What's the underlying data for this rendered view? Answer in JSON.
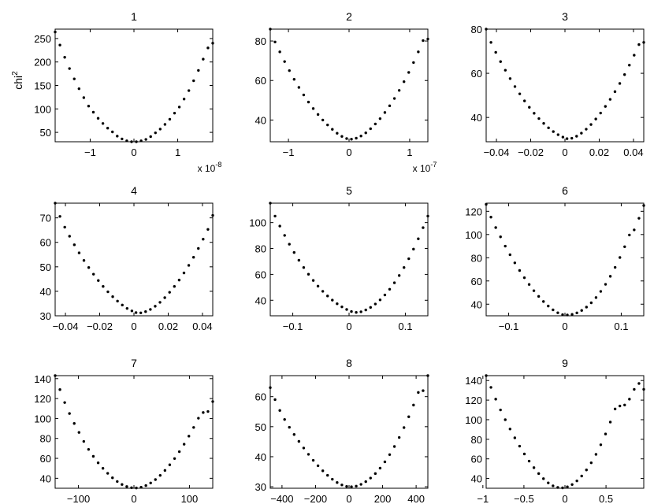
{
  "figure": {
    "ylabel": "chi",
    "ylabel_sup": "2"
  },
  "chart_data": [
    {
      "type": "scatter",
      "title": "1",
      "xlim": [
        -1.8,
        1.8
      ],
      "ylim": [
        30,
        270
      ],
      "xticks": [
        -1,
        0,
        1
      ],
      "xtick_labels": [
        "−1",
        "0",
        "1"
      ],
      "yticks": [
        50,
        100,
        150,
        200,
        250
      ],
      "ytick_labels": [
        "50",
        "100",
        "150",
        "200",
        "250"
      ],
      "x_multiplier": "x 10",
      "x_multiplier_exp": "-8",
      "x": [
        -1.8,
        -1.6909,
        -1.5818,
        -1.4727,
        -1.3636,
        -1.2545,
        -1.1455,
        -1.0364,
        -0.9273,
        -0.8182,
        -0.7091,
        -0.6,
        -0.4909,
        -0.3818,
        -0.2727,
        -0.1636,
        -0.0545,
        0.0545,
        0.1636,
        0.2727,
        0.3818,
        0.4909,
        0.6,
        0.7091,
        0.8182,
        0.9273,
        1.0364,
        1.1455,
        1.2545,
        1.3636,
        1.4727,
        1.5818,
        1.6909,
        1.8
      ],
      "y": [
        264,
        236,
        210,
        186,
        164,
        143,
        124,
        106,
        93,
        80,
        69,
        59,
        51,
        42,
        36,
        32,
        30,
        30,
        32,
        35,
        41,
        49,
        57,
        67,
        78,
        91,
        104,
        121,
        139,
        160,
        182,
        206,
        230,
        240
      ]
    },
    {
      "type": "scatter",
      "title": "2",
      "xlim": [
        -1.3,
        1.3
      ],
      "ylim": [
        29,
        86
      ],
      "xticks": [
        -1,
        0,
        1
      ],
      "xtick_labels": [
        "−1",
        "0",
        "1"
      ],
      "yticks": [
        40,
        60,
        80
      ],
      "ytick_labels": [
        "40",
        "60",
        "80"
      ],
      "x_multiplier": "x 10",
      "x_multiplier_exp": "-7",
      "x": [
        -1.3,
        -1.2212,
        -1.1424,
        -1.0636,
        -0.9848,
        -0.9061,
        -0.8273,
        -0.7485,
        -0.6697,
        -0.5909,
        -0.5121,
        -0.4333,
        -0.3545,
        -0.2758,
        -0.197,
        -0.1182,
        -0.0394,
        0.0394,
        0.1182,
        0.197,
        0.2758,
        0.3545,
        0.4333,
        0.5121,
        0.5909,
        0.6697,
        0.7485,
        0.8273,
        0.9061,
        0.9848,
        1.0636,
        1.1424,
        1.2212,
        1.3
      ],
      "y": [
        86,
        79.5,
        74.5,
        69.6,
        65,
        60.6,
        56.5,
        52.7,
        49.1,
        45.8,
        42.8,
        40,
        37.5,
        35.3,
        33.3,
        31.7,
        30.6,
        30.3,
        30.8,
        31.9,
        33.5,
        35.6,
        38,
        40.7,
        43.8,
        47.2,
        50.9,
        55,
        59.4,
        64.1,
        69.1,
        74.5,
        80.2,
        81
      ]
    },
    {
      "type": "scatter",
      "title": "3",
      "xlim": [
        -0.046,
        0.046
      ],
      "ylim": [
        29,
        80
      ],
      "xticks": [
        -0.04,
        -0.02,
        0,
        0.02,
        0.04
      ],
      "xtick_labels": [
        "−0.04",
        "−0.02",
        "0",
        "0.02",
        "0.04"
      ],
      "yticks": [
        40,
        60,
        80
      ],
      "ytick_labels": [
        "40",
        "60",
        "80"
      ],
      "x": [
        -0.046,
        -0.0432,
        -0.0404,
        -0.0376,
        -0.0348,
        -0.032,
        -0.0292,
        -0.0264,
        -0.0236,
        -0.0208,
        -0.018,
        -0.0152,
        -0.0124,
        -0.0096,
        -0.0068,
        -0.004,
        -0.0012,
        0.0012,
        0.004,
        0.0068,
        0.0096,
        0.0124,
        0.0152,
        0.018,
        0.0208,
        0.0236,
        0.0264,
        0.0292,
        0.032,
        0.0348,
        0.0376,
        0.0404,
        0.0432,
        0.046
      ],
      "y": [
        80,
        74,
        69.5,
        65.3,
        61.4,
        57.6,
        54,
        50.7,
        47.5,
        44.6,
        41.9,
        39.5,
        37.3,
        35.3,
        33.6,
        32.2,
        31.1,
        30.4,
        30.6,
        31.5,
        32.9,
        34.7,
        36.8,
        39.3,
        42,
        45,
        48.2,
        51.7,
        55.4,
        59.4,
        63.7,
        68.2,
        73,
        74
      ]
    },
    {
      "type": "scatter",
      "title": "4",
      "xlim": [
        -0.046,
        0.046
      ],
      "ylim": [
        30,
        76
      ],
      "xticks": [
        -0.04,
        -0.02,
        0,
        0.02,
        0.04
      ],
      "xtick_labels": [
        "−0.04",
        "−0.02",
        "0",
        "0.02",
        "0.04"
      ],
      "yticks": [
        30,
        40,
        50,
        60,
        70
      ],
      "ytick_labels": [
        "30",
        "40",
        "50",
        "60",
        "70"
      ],
      "x": [
        -0.046,
        -0.0432,
        -0.0404,
        -0.0376,
        -0.0348,
        -0.032,
        -0.0292,
        -0.0264,
        -0.0236,
        -0.0208,
        -0.018,
        -0.0152,
        -0.0124,
        -0.0096,
        -0.0068,
        -0.004,
        -0.0012,
        0.0012,
        0.004,
        0.0068,
        0.0096,
        0.0124,
        0.0152,
        0.018,
        0.0208,
        0.0236,
        0.0264,
        0.0292,
        0.032,
        0.0348,
        0.0376,
        0.0404,
        0.0432,
        0.046
      ],
      "y": [
        76,
        70.6,
        66.2,
        62.5,
        59,
        55.7,
        52.6,
        49.7,
        47,
        44.4,
        42,
        39.8,
        37.8,
        36,
        34.4,
        33,
        32,
        31.3,
        31.2,
        31.7,
        32.6,
        33.9,
        35.5,
        37.4,
        39.6,
        42,
        44.6,
        47.5,
        50.6,
        53.9,
        57.5,
        61.3,
        65.3,
        71
      ]
    },
    {
      "type": "scatter",
      "title": "5",
      "xlim": [
        -0.14,
        0.14
      ],
      "ylim": [
        28,
        115
      ],
      "xticks": [
        -0.1,
        0,
        0.1
      ],
      "xtick_labels": [
        "−0.1",
        "0",
        "0.1"
      ],
      "yticks": [
        40,
        60,
        80,
        100
      ],
      "ytick_labels": [
        "40",
        "60",
        "80",
        "100"
      ],
      "x": [
        -0.14,
        -0.1315,
        -0.123,
        -0.1145,
        -0.1061,
        -0.0976,
        -0.0891,
        -0.0806,
        -0.0721,
        -0.0636,
        -0.0552,
        -0.0467,
        -0.0382,
        -0.0297,
        -0.0212,
        -0.0127,
        -0.0042,
        0.0042,
        0.0127,
        0.0212,
        0.0297,
        0.0382,
        0.0467,
        0.0552,
        0.0636,
        0.0721,
        0.0806,
        0.0891,
        0.0976,
        0.1061,
        0.1145,
        0.123,
        0.1315,
        0.14
      ],
      "y": [
        115,
        105,
        97.3,
        90.1,
        83.3,
        76.9,
        70.9,
        65.3,
        60.1,
        55.3,
        50.9,
        46.9,
        43.3,
        40.1,
        37.3,
        34.9,
        32.9,
        31.3,
        30.6,
        31.1,
        32.5,
        34.5,
        37.1,
        40.3,
        44.1,
        48.5,
        53.5,
        59.1,
        65.3,
        72.1,
        79.5,
        87.5,
        96.1,
        105
      ]
    },
    {
      "type": "scatter",
      "title": "6",
      "xlim": [
        -0.14,
        0.14
      ],
      "ylim": [
        30,
        127
      ],
      "xticks": [
        -0.1,
        0,
        0.1
      ],
      "xtick_labels": [
        "−0.1",
        "0",
        "0.1"
      ],
      "yticks": [
        40,
        60,
        80,
        100,
        120
      ],
      "ytick_labels": [
        "40",
        "60",
        "80",
        "100",
        "120"
      ],
      "x": [
        -0.14,
        -0.1315,
        -0.123,
        -0.1145,
        -0.1061,
        -0.0976,
        -0.0891,
        -0.0806,
        -0.0721,
        -0.0636,
        -0.0552,
        -0.0467,
        -0.0382,
        -0.0297,
        -0.0212,
        -0.0127,
        -0.0042,
        0.0042,
        0.0127,
        0.0212,
        0.0297,
        0.0382,
        0.0467,
        0.0552,
        0.0636,
        0.0721,
        0.0806,
        0.0891,
        0.0976,
        0.1061,
        0.1145,
        0.123,
        0.1315,
        0.14
      ],
      "y": [
        126,
        115,
        106,
        98,
        90,
        82.6,
        75.6,
        69,
        62.8,
        57,
        51.6,
        46.7,
        42.3,
        38.4,
        35.1,
        32.6,
        31,
        30.7,
        31.2,
        32.5,
        34.6,
        37.5,
        41.2,
        45.7,
        51,
        57.1,
        64,
        71.7,
        80.2,
        89.5,
        99.6,
        104,
        114,
        125
      ]
    },
    {
      "type": "scatter",
      "title": "7",
      "xlim": [
        -142,
        142
      ],
      "ylim": [
        30,
        143
      ],
      "xticks": [
        -100,
        0,
        100
      ],
      "xtick_labels": [
        "−100",
        "0",
        "100"
      ],
      "yticks": [
        40,
        60,
        80,
        100,
        120,
        140
      ],
      "ytick_labels": [
        "40",
        "60",
        "80",
        "100",
        "120",
        "140"
      ],
      "x": [
        -142,
        -133.4,
        -124.8,
        -116.2,
        -107.6,
        -99,
        -90.4,
        -81.8,
        -73.2,
        -64.5,
        -55.9,
        -47.3,
        -38.7,
        -30.1,
        -21.5,
        -12.9,
        -4.3,
        4.3,
        12.9,
        21.5,
        30.1,
        38.7,
        47.3,
        55.9,
        64.5,
        73.2,
        81.8,
        90.4,
        99,
        107.6,
        116.2,
        124.8,
        133.4,
        142
      ],
      "y": [
        143,
        129,
        116,
        105,
        95,
        86,
        77,
        69,
        62,
        55.5,
        50,
        45,
        40.5,
        36.8,
        33.8,
        31.7,
        30.5,
        30.3,
        31,
        32.7,
        35.3,
        38.7,
        42.9,
        47.9,
        53.5,
        59.8,
        66.7,
        74.2,
        82.3,
        91,
        100.3,
        106,
        107,
        117
      ]
    },
    {
      "type": "scatter",
      "title": "8",
      "xlim": [
        -470,
        470
      ],
      "ylim": [
        29.5,
        67
      ],
      "xticks": [
        -400,
        -200,
        0,
        200,
        400
      ],
      "xtick_labels": [
        "−400",
        "−200",
        "0",
        "200",
        "400"
      ],
      "yticks": [
        30,
        40,
        50,
        60
      ],
      "ytick_labels": [
        "30",
        "40",
        "50",
        "60"
      ],
      "x": [
        -470,
        -441.5,
        -413,
        -384.5,
        -356.1,
        -327.6,
        -299.1,
        -270.6,
        -242.1,
        -213.6,
        -185.2,
        -156.7,
        -128.2,
        -99.7,
        -71.2,
        -42.7,
        -14.2,
        14.2,
        42.7,
        71.2,
        99.7,
        128.2,
        156.7,
        185.2,
        213.6,
        242.1,
        270.6,
        299.1,
        327.6,
        356.1,
        384.5,
        413,
        441.5,
        470
      ],
      "y": [
        63,
        59,
        55.4,
        52.4,
        49.8,
        47.4,
        45.1,
        42.9,
        40.8,
        38.8,
        37,
        35.3,
        33.8,
        32.5,
        31.4,
        30.6,
        30.1,
        30,
        30.2,
        30.8,
        31.7,
        32.9,
        34.4,
        36.2,
        38.3,
        40.7,
        43.4,
        46.4,
        49.7,
        53.3,
        57.2,
        61.4,
        62,
        67
      ]
    },
    {
      "type": "scatter",
      "title": "9",
      "xlim": [
        -0.96,
        0.96
      ],
      "ylim": [
        30,
        145
      ],
      "xticks": [
        -1,
        -0.5,
        0,
        0.5
      ],
      "xtick_labels": [
        "−1",
        "−0.5",
        "0",
        "0.5"
      ],
      "yticks": [
        40,
        60,
        80,
        100,
        120,
        140
      ],
      "ytick_labels": [
        "40",
        "60",
        "80",
        "100",
        "120",
        "140"
      ],
      "x": [
        -0.96,
        -0.9018,
        -0.8436,
        -0.7855,
        -0.7273,
        -0.6691,
        -0.6109,
        -0.5527,
        -0.4945,
        -0.4364,
        -0.3782,
        -0.32,
        -0.2618,
        -0.2036,
        -0.1455,
        -0.0873,
        -0.0291,
        0.0291,
        0.0873,
        0.1455,
        0.2036,
        0.2618,
        0.32,
        0.3782,
        0.4364,
        0.4945,
        0.5527,
        0.6109,
        0.6691,
        0.7273,
        0.7855,
        0.8436,
        0.9018,
        0.96
      ],
      "y": [
        145,
        133,
        121,
        110,
        100,
        90.5,
        81.5,
        73,
        65,
        57.7,
        51,
        45,
        39.8,
        35.5,
        32.5,
        30.8,
        30.4,
        31.4,
        33.8,
        37.5,
        42.5,
        48.7,
        56,
        64.6,
        74.4,
        85.4,
        97.6,
        111,
        114,
        115,
        121,
        131,
        137,
        131
      ]
    }
  ]
}
